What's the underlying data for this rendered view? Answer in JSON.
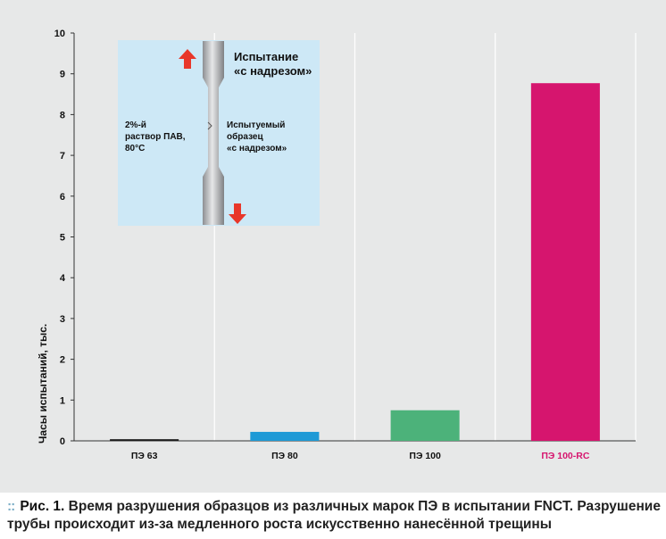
{
  "chart_data": {
    "type": "bar",
    "categories": [
      "ПЭ 63",
      "ПЭ 80",
      "ПЭ 100",
      "ПЭ 100-RC"
    ],
    "values": [
      0.04,
      0.22,
      0.75,
      8.77
    ],
    "colors": [
      "#1a1a1a",
      "#1e9ad6",
      "#4cb27a",
      "#d6156e"
    ],
    "label_colors": [
      "#111111",
      "#111111",
      "#111111",
      "#d6156e"
    ],
    "ylabel": "Часы испытаний, тыс.",
    "xlabel": "",
    "ylim": [
      0,
      10
    ],
    "yticks": [
      0,
      1,
      2,
      3,
      4,
      5,
      6,
      7,
      8,
      9,
      10
    ],
    "grid": "vertical separators",
    "inset": {
      "title_line1": "Испытание",
      "title_line2": "«с надрезом»",
      "left_line1": "2%-й",
      "left_line2": "раствор ПАВ,",
      "left_line3": "80°С",
      "right_line1": "Испытуемый",
      "right_line2": "образец",
      "right_line3": "«с надрезом»",
      "background": "#cde8f6",
      "arrow_color": "#e8372a"
    }
  },
  "caption": {
    "marker": "::",
    "lead": "Рис. 1.",
    "text": " Время разрушения образцов из различных марок ПЭ в испытании FNCT. Разрушение трубы происходит из-за медленного роста искусственно нанесённой трещины"
  }
}
